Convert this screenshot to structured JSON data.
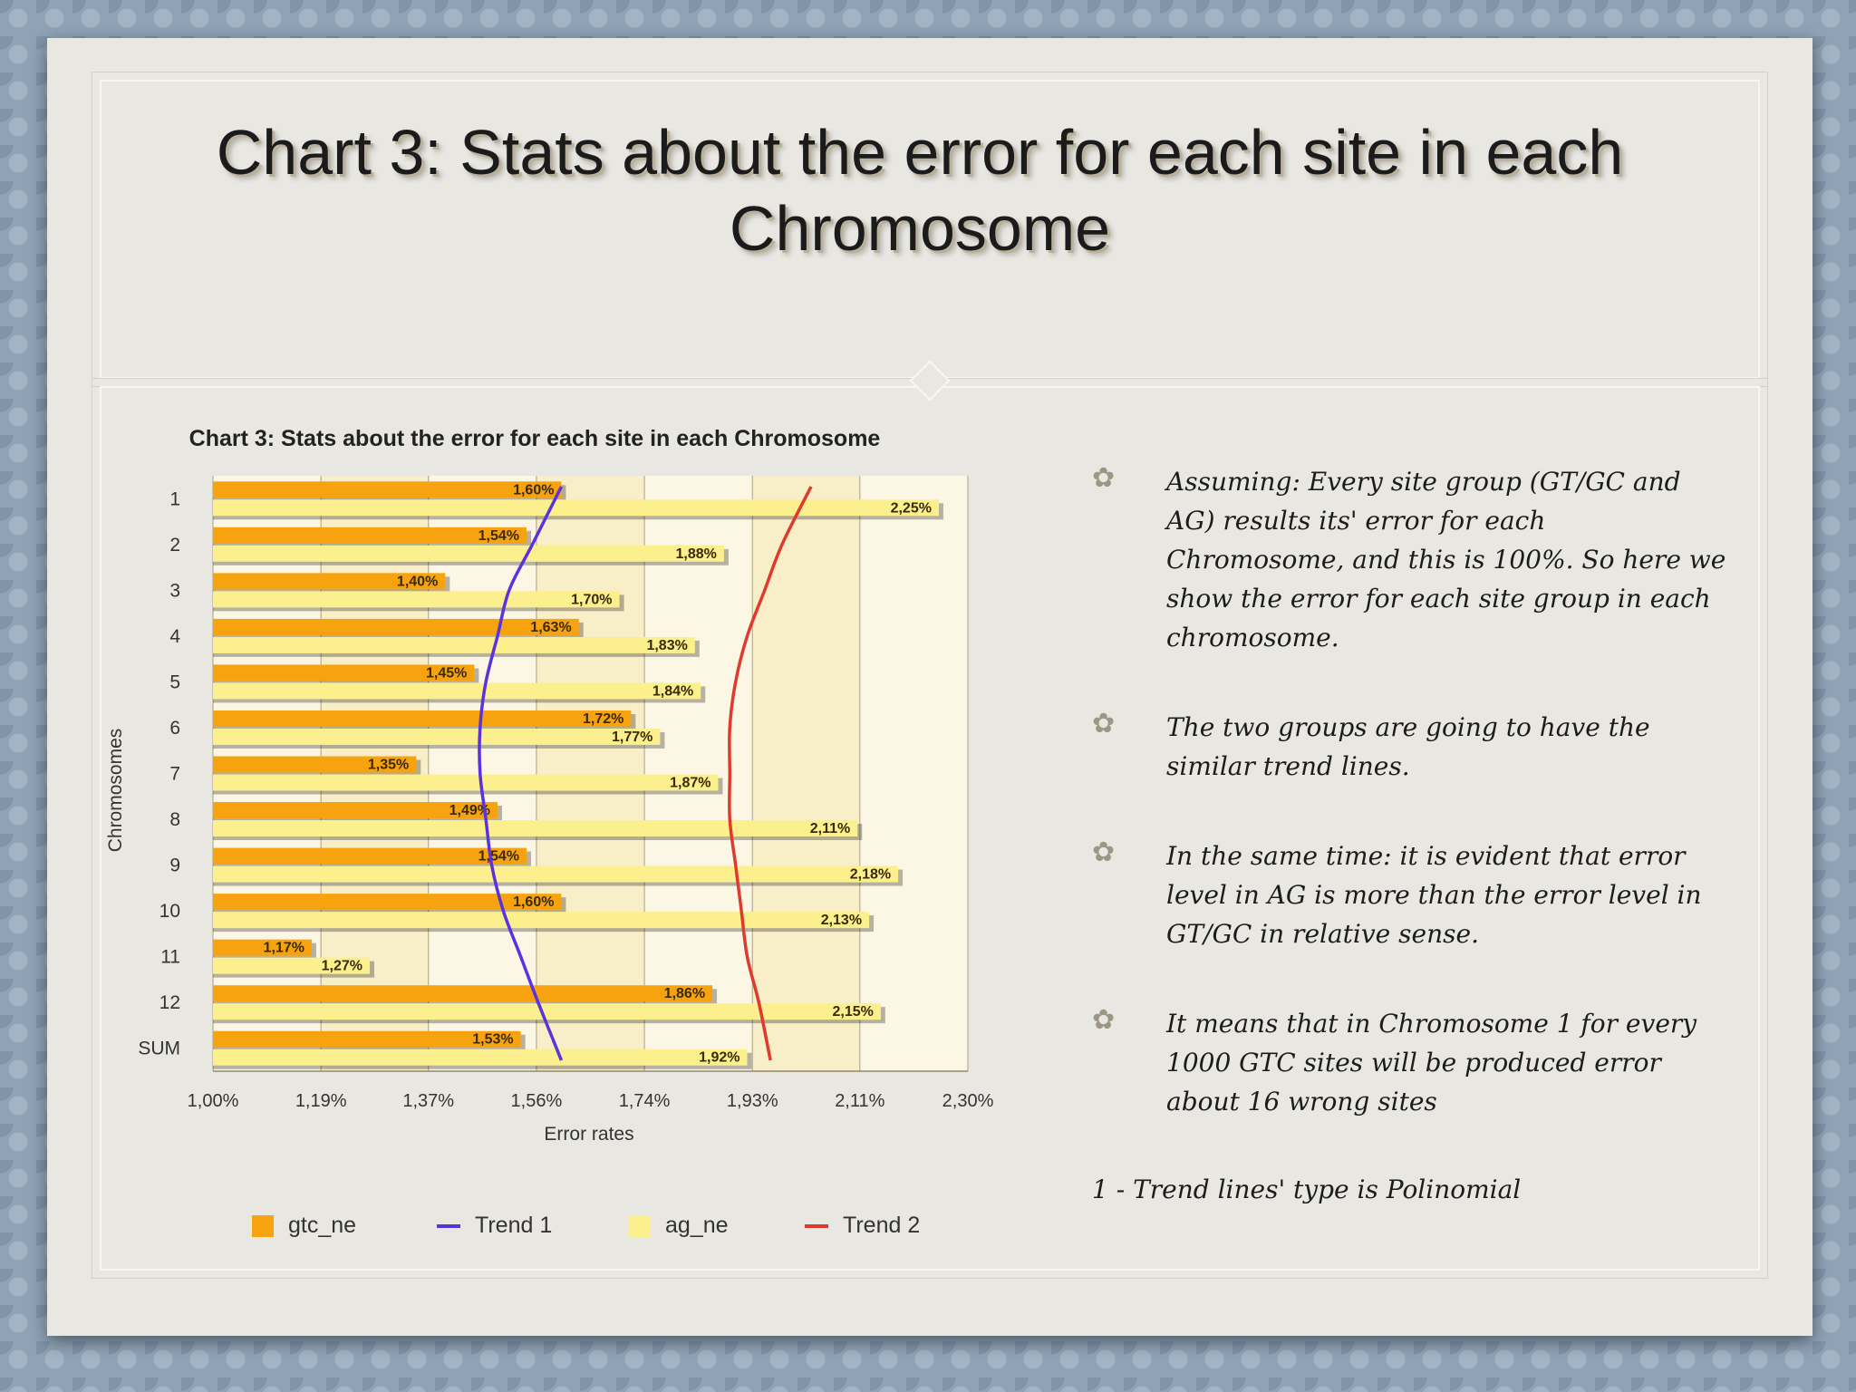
{
  "slide": {
    "title": "Chart 3: Stats about the error for each site in each Chromosome",
    "bullets": [
      "Assuming: Every site group (GT/GC and AG) results its' error for each Chromosome, and this is 100%. So here we show the error for each site group in each chromosome.",
      "The two groups are going to have the similar trend lines.",
      "In the same time: it is evident that error level in AG is more than the error level in GT/GC in relative sense.",
      "It means that in Chromosome 1 for every 1000 GTC sites will be produced error about 16 wrong sites"
    ],
    "footnote": "1 - Trend lines' type is Polinomial"
  },
  "colors": {
    "gtc_ne": "#f7a30f",
    "ag_ne": "#fcef8e",
    "trend1": "#5b32e0",
    "trend2": "#e03a2e",
    "plot_bg_light": "#fbf7e4",
    "plot_bg_dark": "#f8eec8"
  },
  "chart_data": {
    "type": "bar",
    "orientation": "horizontal",
    "title": "Chart 3: Stats about the error for each site in each Chromosome",
    "xlabel": "Error rates",
    "ylabel": "Chromosomes",
    "xlim": [
      1.0,
      2.3
    ],
    "x_ticks": [
      "1,00%",
      "1,19%",
      "1,37%",
      "1,56%",
      "1,74%",
      "1,93%",
      "2,11%",
      "2,30%"
    ],
    "x_tick_values": [
      1.0,
      1.186,
      1.371,
      1.557,
      1.743,
      1.929,
      2.114,
      2.3
    ],
    "categories": [
      "1",
      "2",
      "3",
      "4",
      "5",
      "6",
      "7",
      "8",
      "9",
      "10",
      "11",
      "12",
      "SUM"
    ],
    "series": [
      {
        "name": "gtc_ne",
        "values": [
          1.6,
          1.54,
          1.4,
          1.63,
          1.45,
          1.72,
          1.35,
          1.49,
          1.54,
          1.6,
          1.17,
          1.86,
          1.53
        ],
        "labels": [
          "1,60%",
          "1,54%",
          "1,40%",
          "1,63%",
          "1,45%",
          "1,72%",
          "1,35%",
          "1,49%",
          "1,54%",
          "1,60%",
          "1,17%",
          "1,86%",
          "1,53%"
        ]
      },
      {
        "name": "ag_ne",
        "values": [
          2.25,
          1.88,
          1.7,
          1.83,
          1.84,
          1.77,
          1.87,
          2.11,
          2.18,
          2.13,
          1.27,
          2.15,
          1.92
        ],
        "labels": [
          "2,25%",
          "1,88%",
          "1,70%",
          "1,83%",
          "1,84%",
          "1,77%",
          "1,87%",
          "2,11%",
          "2,18%",
          "2,13%",
          "1,27%",
          "2,15%",
          "1,92%"
        ]
      }
    ],
    "trendlines": [
      {
        "name": "Trend 1",
        "type": "polynomial",
        "of": "gtc_ne",
        "values": [
          1.6,
          1.55,
          1.51,
          1.49,
          1.47,
          1.46,
          1.46,
          1.47,
          1.48,
          1.5,
          1.53,
          1.56,
          1.6
        ]
      },
      {
        "name": "Trend 2",
        "type": "polynomial",
        "of": "ag_ne",
        "values": [
          2.03,
          1.98,
          1.95,
          1.92,
          1.9,
          1.89,
          1.89,
          1.89,
          1.9,
          1.91,
          1.92,
          1.94,
          1.96
        ]
      }
    ],
    "legend": [
      "gtc_ne",
      "Trend 1",
      "ag_ne",
      "Trend 2"
    ],
    "legend_position": "bottom"
  }
}
